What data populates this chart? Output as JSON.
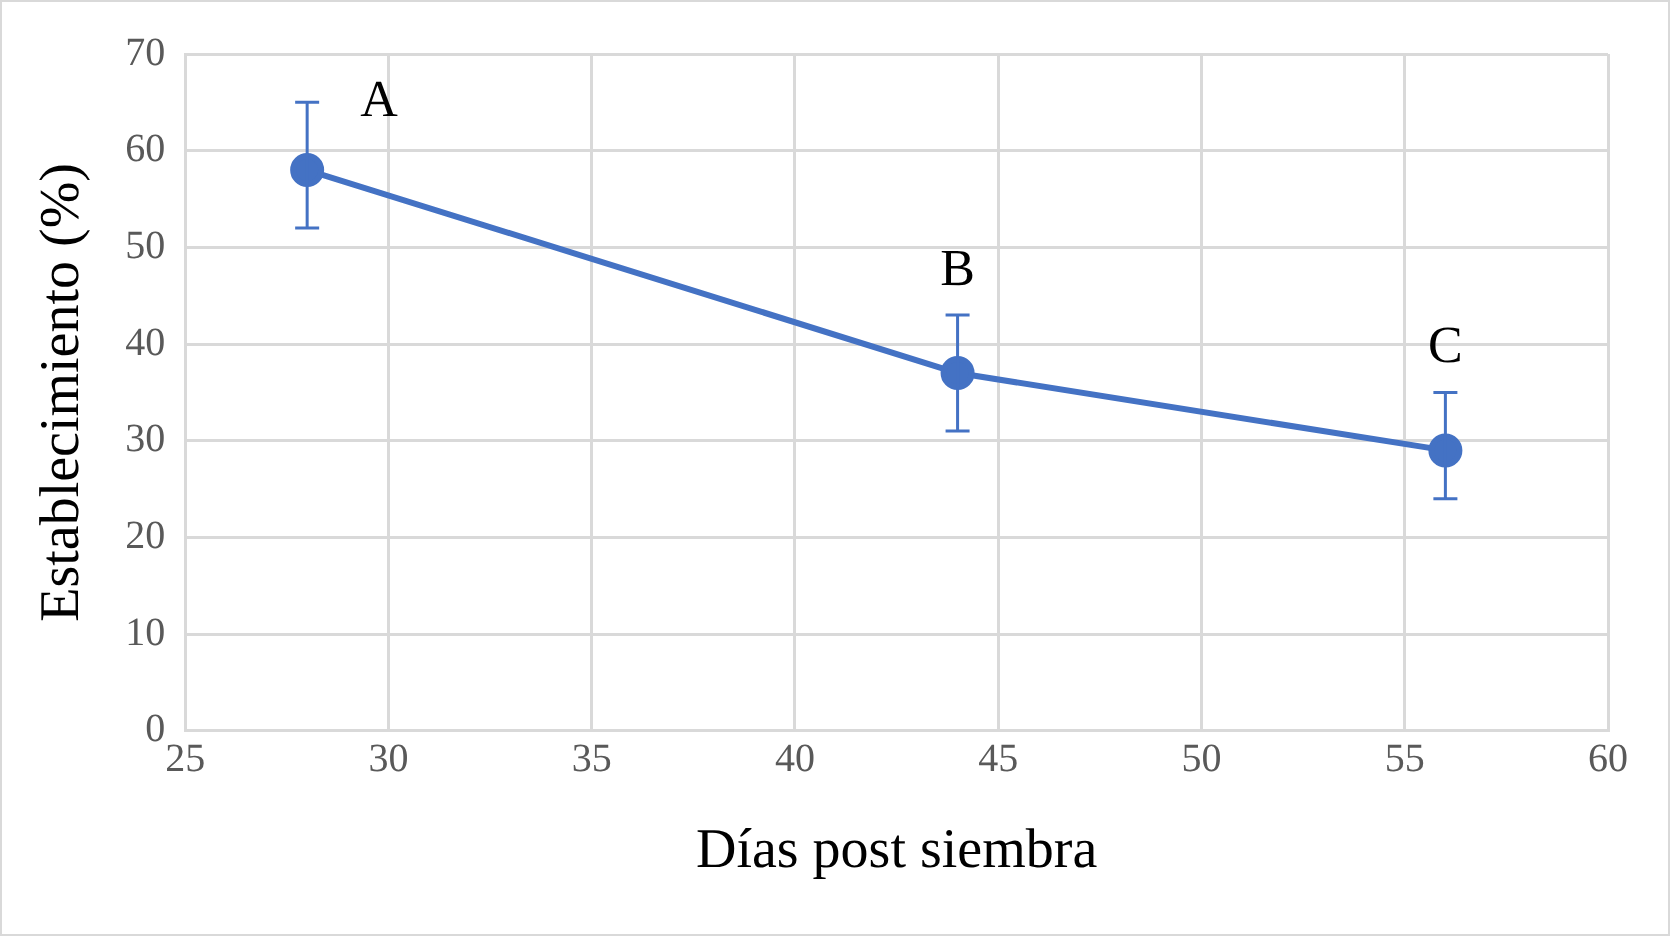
{
  "chart_data": {
    "type": "line",
    "xlabel": "Días post siembra",
    "ylabel": "Establecimiento (%)",
    "x": [
      28,
      44,
      56
    ],
    "series": [
      {
        "color": "#4472c4",
        "values": [
          58,
          37,
          29
        ],
        "errors": [
          [
            52,
            65
          ],
          [
            31,
            43
          ],
          [
            24,
            35
          ]
        ]
      }
    ],
    "xlim": [
      25,
      60
    ],
    "xticks": [
      25,
      30,
      35,
      40,
      45,
      50,
      55,
      60
    ],
    "ylim": [
      0,
      70
    ],
    "yticks": [
      0,
      10,
      20,
      30,
      40,
      50,
      60,
      70
    ],
    "grid": true,
    "legend": false,
    "marker": "circle",
    "line_style": "solid",
    "annotations": [
      "A",
      "B",
      "C"
    ]
  }
}
